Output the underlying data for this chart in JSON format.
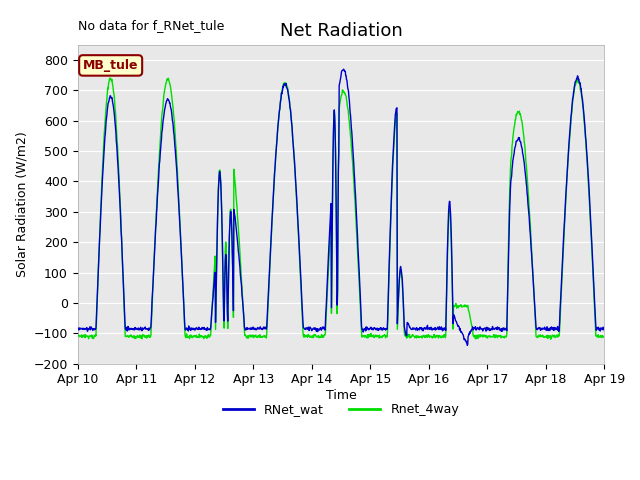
{
  "title": "Net Radiation",
  "xlabel": "Time",
  "ylabel": "Solar Radiation (W/m2)",
  "ylim": [
    -200,
    850
  ],
  "yticks": [
    -200,
    -100,
    0,
    100,
    200,
    300,
    400,
    500,
    600,
    700,
    800
  ],
  "note": "No data for f_RNet_tule",
  "legend_label": "MB_tule",
  "legend_entries": [
    "RNet_wat",
    "Rnet_4way"
  ],
  "line_colors": [
    "#0000cc",
    "#00dd00"
  ],
  "background_color": "#e8e8e8",
  "days": [
    "Apr 10",
    "Apr 11",
    "Apr 12",
    "Apr 13",
    "Apr 14",
    "Apr 15",
    "Apr 16",
    "Apr 17",
    "Apr 18",
    "Apr 19"
  ],
  "legend_box_facecolor": "#ffffcc",
  "legend_box_edgecolor": "#8b0000",
  "title_fontsize": 13,
  "tick_fontsize": 9,
  "label_fontsize": 9
}
